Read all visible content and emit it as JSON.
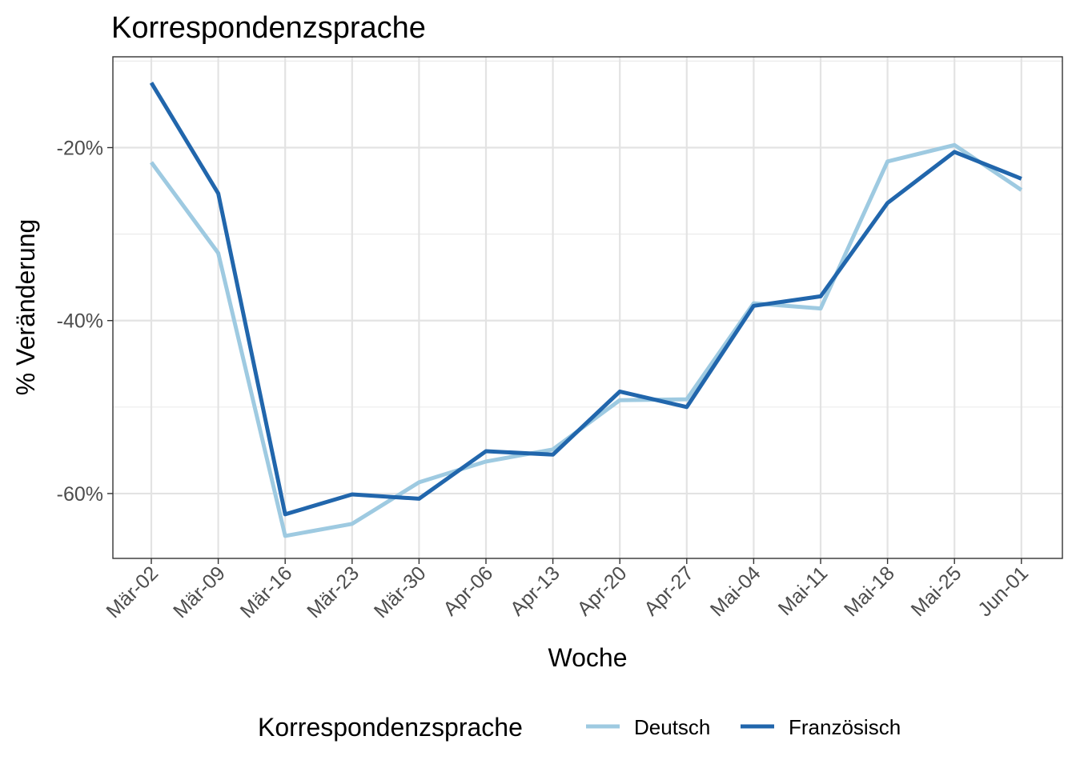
{
  "chart_data": {
    "type": "line",
    "title": "Korrespondenzsprache",
    "xlabel": "Woche",
    "ylabel": "% Veränderung",
    "categories": [
      "Mär-02",
      "Mär-09",
      "Mär-16",
      "Mär-23",
      "Mär-30",
      "Apr-06",
      "Apr-13",
      "Apr-20",
      "Apr-27",
      "Mai-04",
      "Mai-11",
      "Mai-18",
      "Mai-25",
      "Jun-01"
    ],
    "y_ticks": [
      -60,
      -40,
      -20
    ],
    "y_tick_labels": [
      "-60%",
      "-40%",
      "-20%"
    ],
    "ylim": [
      -67.5,
      -9.5
    ],
    "grid": true,
    "legend": {
      "title": "Korrespondenzsprache",
      "position": "bottom"
    },
    "series": [
      {
        "name": "Deutsch",
        "color": "#9ecae1",
        "values": [
          -21.7,
          -32.2,
          -64.9,
          -63.5,
          -58.7,
          -56.3,
          -54.9,
          -49.2,
          -49.1,
          -38.0,
          -38.6,
          -21.6,
          -19.7,
          -24.9
        ]
      },
      {
        "name": "Französisch",
        "color": "#2166ac",
        "values": [
          -12.5,
          -25.3,
          -62.4,
          -60.1,
          -60.6,
          -55.1,
          -55.5,
          -48.2,
          -50.0,
          -38.3,
          -37.2,
          -26.4,
          -20.5,
          -23.6
        ]
      }
    ]
  }
}
